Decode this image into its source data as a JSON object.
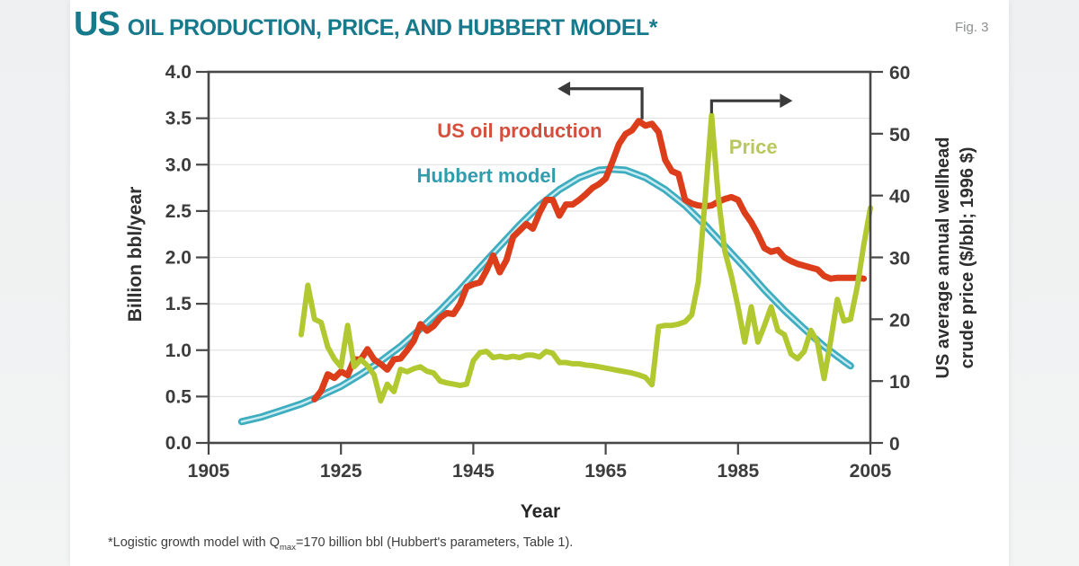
{
  "page": {
    "fig_label": "Fig. 3"
  },
  "title": {
    "prefix": "US",
    "rest": "OIL PRODUCTION, PRICE, AND HUBBERT MODEL*",
    "color": "#17798c"
  },
  "footnote": {
    "pre": "*Logistic growth model with Q",
    "sub": "max",
    "post": "=170 billion bbl (Hubbert's parameters, Table 1)."
  },
  "chart_data": {
    "type": "line",
    "title": "US oil production, price, and Hubbert model",
    "x_axis": {
      "label": "Year",
      "range": [
        1905,
        2005
      ],
      "tick_values": [
        1905,
        1925,
        1945,
        1965,
        1985,
        2005
      ],
      "tick_labels": [
        "1905",
        "1925",
        "1945",
        "1965",
        "1985",
        "2005"
      ]
    },
    "y_left": {
      "label": "Billion bbl/year",
      "range": [
        0,
        4
      ],
      "tick_values": [
        0,
        0.5,
        1,
        1.5,
        2,
        2.5,
        3,
        3.5,
        4
      ],
      "tick_labels": [
        "0.0",
        "0.5",
        "1.0",
        "1.5",
        "2.0",
        "2.5",
        "3.0",
        "3.5",
        "4.0"
      ]
    },
    "y_right": {
      "label_line1": "US average annual wellhead",
      "label_line2": "crude price ($/bbl; 1996 $)",
      "range": [
        0,
        60
      ],
      "tick_values": [
        0,
        10,
        20,
        30,
        40,
        50,
        60
      ],
      "tick_labels": [
        "0",
        "10",
        "20",
        "30",
        "40",
        "50",
        "60"
      ]
    },
    "grid_values": [
      0.5,
      1,
      1.5,
      2,
      2.5,
      3,
      3.5
    ],
    "grid_color": "#e4e4e6",
    "frame_color": "#474747",
    "series": [
      {
        "key": "hubbert",
        "label": "Hubbert model",
        "label_color": "#2f9dae",
        "label_anchor": {
          "year": 1947,
          "value": 2.88
        },
        "axis": "left",
        "color": "#3fadc0",
        "core_color": "#c9ebf1",
        "width": 8,
        "points": [
          [
            1910,
            0.23
          ],
          [
            1913,
            0.28
          ],
          [
            1916,
            0.35
          ],
          [
            1919,
            0.42
          ],
          [
            1922,
            0.51
          ],
          [
            1925,
            0.61
          ],
          [
            1928,
            0.74
          ],
          [
            1931,
            0.88
          ],
          [
            1934,
            1.04
          ],
          [
            1937,
            1.23
          ],
          [
            1940,
            1.43
          ],
          [
            1943,
            1.65
          ],
          [
            1946,
            1.89
          ],
          [
            1949,
            2.12
          ],
          [
            1952,
            2.35
          ],
          [
            1955,
            2.56
          ],
          [
            1958,
            2.73
          ],
          [
            1961,
            2.86
          ],
          [
            1964,
            2.94
          ],
          [
            1966,
            2.95
          ],
          [
            1968,
            2.94
          ],
          [
            1971,
            2.86
          ],
          [
            1974,
            2.73
          ],
          [
            1977,
            2.56
          ],
          [
            1980,
            2.35
          ],
          [
            1983,
            2.12
          ],
          [
            1986,
            1.89
          ],
          [
            1989,
            1.65
          ],
          [
            1992,
            1.43
          ],
          [
            1995,
            1.23
          ],
          [
            1998,
            1.04
          ],
          [
            2001,
            0.88
          ],
          [
            2002,
            0.83
          ]
        ]
      },
      {
        "key": "production",
        "label": "US oil production",
        "label_color": "#d2503c",
        "label_anchor": {
          "year": 1952,
          "value": 3.36
        },
        "axis": "left",
        "color": "#dc3e1c",
        "width": 7,
        "points": [
          [
            1921,
            0.47
          ],
          [
            1922,
            0.56
          ],
          [
            1923,
            0.74
          ],
          [
            1924,
            0.7
          ],
          [
            1925,
            0.77
          ],
          [
            1926,
            0.73
          ],
          [
            1927,
            0.9
          ],
          [
            1928,
            0.9
          ],
          [
            1929,
            1.01
          ],
          [
            1930,
            0.9
          ],
          [
            1931,
            0.85
          ],
          [
            1932,
            0.79
          ],
          [
            1933,
            0.9
          ],
          [
            1934,
            0.91
          ],
          [
            1935,
            1.0
          ],
          [
            1936,
            1.1
          ],
          [
            1937,
            1.28
          ],
          [
            1938,
            1.21
          ],
          [
            1939,
            1.26
          ],
          [
            1940,
            1.35
          ],
          [
            1941,
            1.4
          ],
          [
            1942,
            1.39
          ],
          [
            1943,
            1.5
          ],
          [
            1944,
            1.68
          ],
          [
            1945,
            1.71
          ],
          [
            1946,
            1.73
          ],
          [
            1947,
            1.86
          ],
          [
            1948,
            2.02
          ],
          [
            1949,
            1.84
          ],
          [
            1950,
            1.97
          ],
          [
            1951,
            2.22
          ],
          [
            1952,
            2.29
          ],
          [
            1953,
            2.36
          ],
          [
            1954,
            2.31
          ],
          [
            1955,
            2.48
          ],
          [
            1956,
            2.62
          ],
          [
            1957,
            2.62
          ],
          [
            1958,
            2.45
          ],
          [
            1959,
            2.57
          ],
          [
            1960,
            2.57
          ],
          [
            1961,
            2.62
          ],
          [
            1962,
            2.68
          ],
          [
            1963,
            2.75
          ],
          [
            1964,
            2.79
          ],
          [
            1965,
            2.85
          ],
          [
            1966,
            3.03
          ],
          [
            1967,
            3.22
          ],
          [
            1968,
            3.33
          ],
          [
            1969,
            3.37
          ],
          [
            1970,
            3.47
          ],
          [
            1971,
            3.42
          ],
          [
            1972,
            3.44
          ],
          [
            1973,
            3.35
          ],
          [
            1974,
            3.05
          ],
          [
            1975,
            2.93
          ],
          [
            1976,
            2.9
          ],
          [
            1977,
            2.62
          ],
          [
            1978,
            2.58
          ],
          [
            1979,
            2.56
          ],
          [
            1980,
            2.55
          ],
          [
            1981,
            2.56
          ],
          [
            1982,
            2.6
          ],
          [
            1983,
            2.63
          ],
          [
            1984,
            2.65
          ],
          [
            1985,
            2.62
          ],
          [
            1986,
            2.48
          ],
          [
            1987,
            2.38
          ],
          [
            1988,
            2.25
          ],
          [
            1989,
            2.1
          ],
          [
            1990,
            2.06
          ],
          [
            1991,
            2.08
          ],
          [
            1992,
            2.0
          ],
          [
            1993,
            1.96
          ],
          [
            1994,
            1.93
          ],
          [
            1995,
            1.91
          ],
          [
            1996,
            1.89
          ],
          [
            1997,
            1.87
          ],
          [
            1998,
            1.8
          ],
          [
            1999,
            1.77
          ],
          [
            2000,
            1.78
          ],
          [
            2001,
            1.78
          ],
          [
            2002,
            1.78
          ],
          [
            2003,
            1.78
          ],
          [
            2004,
            1.77
          ]
        ]
      },
      {
        "key": "price",
        "label": "Price",
        "label_color": "#b9c75e",
        "label_anchor": {
          "year": 1987.3,
          "value": 47.8
        },
        "axis": "right",
        "color": "#b2c831",
        "width": 6,
        "points": [
          [
            1919,
            17.5
          ],
          [
            1920,
            25.5
          ],
          [
            1921,
            20.0
          ],
          [
            1922,
            19.5
          ],
          [
            1923,
            15.5
          ],
          [
            1924,
            13.6
          ],
          [
            1925,
            12.3
          ],
          [
            1926,
            19.0
          ],
          [
            1927,
            12.3
          ],
          [
            1928,
            13.5
          ],
          [
            1929,
            12.5
          ],
          [
            1930,
            11.0
          ],
          [
            1931,
            6.8
          ],
          [
            1932,
            9.5
          ],
          [
            1933,
            8.3
          ],
          [
            1934,
            11.9
          ],
          [
            1935,
            11.5
          ],
          [
            1936,
            12.0
          ],
          [
            1937,
            12.3
          ],
          [
            1938,
            11.6
          ],
          [
            1939,
            11.3
          ],
          [
            1940,
            10.0
          ],
          [
            1941,
            9.7
          ],
          [
            1942,
            9.5
          ],
          [
            1943,
            9.3
          ],
          [
            1944,
            9.5
          ],
          [
            1945,
            13.3
          ],
          [
            1946,
            14.6
          ],
          [
            1947,
            14.8
          ],
          [
            1948,
            13.8
          ],
          [
            1949,
            14.0
          ],
          [
            1950,
            13.8
          ],
          [
            1951,
            14.0
          ],
          [
            1952,
            13.8
          ],
          [
            1953,
            14.2
          ],
          [
            1954,
            14.2
          ],
          [
            1955,
            13.9
          ],
          [
            1956,
            14.8
          ],
          [
            1957,
            14.5
          ],
          [
            1958,
            13.0
          ],
          [
            1959,
            13.0
          ],
          [
            1960,
            12.8
          ],
          [
            1961,
            12.8
          ],
          [
            1962,
            12.6
          ],
          [
            1963,
            12.5
          ],
          [
            1964,
            12.3
          ],
          [
            1965,
            12.1
          ],
          [
            1966,
            11.9
          ],
          [
            1967,
            11.7
          ],
          [
            1968,
            11.5
          ],
          [
            1969,
            11.3
          ],
          [
            1970,
            11.0
          ],
          [
            1971,
            10.6
          ],
          [
            1972,
            9.4
          ],
          [
            1973,
            18.8
          ],
          [
            1974,
            19.0
          ],
          [
            1975,
            19.0
          ],
          [
            1976,
            19.2
          ],
          [
            1977,
            19.6
          ],
          [
            1978,
            20.7
          ],
          [
            1979,
            26.0
          ],
          [
            1980,
            39.0
          ],
          [
            1981,
            53.0
          ],
          [
            1982,
            40.0
          ],
          [
            1983,
            31.0
          ],
          [
            1984,
            27.0
          ],
          [
            1985,
            22.0
          ],
          [
            1986,
            16.3
          ],
          [
            1987,
            22.0
          ],
          [
            1988,
            16.3
          ],
          [
            1989,
            19.0
          ],
          [
            1990,
            22.0
          ],
          [
            1991,
            18.2
          ],
          [
            1992,
            17.5
          ],
          [
            1993,
            14.4
          ],
          [
            1994,
            13.6
          ],
          [
            1995,
            14.8
          ],
          [
            1996,
            18.2
          ],
          [
            1997,
            16.3
          ],
          [
            1998,
            10.4
          ],
          [
            1999,
            16.5
          ],
          [
            2000,
            23.2
          ],
          [
            2001,
            19.7
          ],
          [
            2002,
            20.0
          ],
          [
            2003,
            25.2
          ],
          [
            2004,
            32.0
          ],
          [
            2005,
            38.0
          ]
        ]
      }
    ],
    "annotations": [
      {
        "key": "production-peak-arrow",
        "year": 1970.5,
        "value": 3.47,
        "axis": "left",
        "dir": "left",
        "stem": 34,
        "run": 80,
        "color": "#3a3a3a"
      },
      {
        "key": "price-peak-arrow",
        "year": 1981,
        "value": 53,
        "axis": "right",
        "dir": "right",
        "stem": 14,
        "run": 76,
        "color": "#3a3a3a"
      }
    ],
    "legend_position": "inline-labels",
    "grid": true
  }
}
